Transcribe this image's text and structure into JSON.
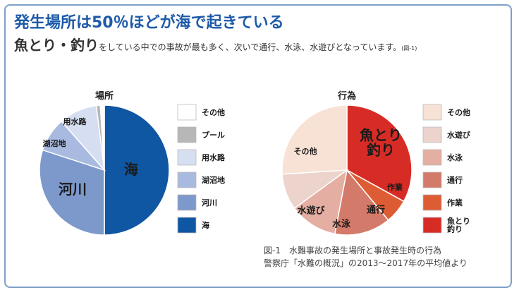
{
  "title": "発生場所は50％ほどが海で起きている",
  "subtitle": {
    "lead": "魚とり・釣り",
    "rest": "をしている中での事故が最も多く、次いで通行、水泳、水遊びとなっています。",
    "ref": "(図-1)"
  },
  "caption": {
    "line1": "図-1　水難事故の発生場所と事故発生時の行為",
    "line2": "警察庁「水難の概況」の2013〜2017年の平均値より"
  },
  "chart_data": [
    {
      "type": "pie",
      "title": "場所",
      "slices": [
        {
          "label": "海",
          "value": 50.0,
          "color": "#0f56a3",
          "label_color": "#1a1a1a",
          "label_size": 20
        },
        {
          "label": "河川",
          "value": 30.0,
          "color": "#7d98cb",
          "label_color": "#1a1a1a",
          "label_size": 20
        },
        {
          "label": "湖沼地",
          "value": 8.5,
          "color": "#a8badf",
          "label_color": "#1a1a1a",
          "label_size": 11
        },
        {
          "label": "用水路",
          "value": 9.5,
          "color": "#d6def1",
          "label_color": "#1a1a1a",
          "label_size": 11
        },
        {
          "label": "プール",
          "value": 1.0,
          "color": "#b7b7b7",
          "label_color": "",
          "label_size": 0
        },
        {
          "label": "その他",
          "value": 1.0,
          "color": "#ffffff",
          "label_color": "",
          "label_size": 0
        }
      ],
      "legend": [
        {
          "label": "その他",
          "color": "#ffffff"
        },
        {
          "label": "プール",
          "color": "#b7b7b7"
        },
        {
          "label": "用水路",
          "color": "#d6def1"
        },
        {
          "label": "湖沼地",
          "color": "#a8badf"
        },
        {
          "label": "河川",
          "color": "#7d98cb"
        },
        {
          "label": "海",
          "color": "#0f56a3"
        }
      ]
    },
    {
      "type": "pie",
      "title": "行為",
      "slices": [
        {
          "label": "魚とり\n釣り",
          "value": 33.0,
          "color": "#d72c26",
          "label_color": "#1a1a1a",
          "label_size": 20
        },
        {
          "label": "作業",
          "value": 6.0,
          "color": "#de5c34",
          "label_color": "#1a1a1a",
          "label_size": 11
        },
        {
          "label": "通行",
          "value": 14.0,
          "color": "#d47a6a",
          "label_color": "#1a1a1a",
          "label_size": 13
        },
        {
          "label": "水泳",
          "value": 12.0,
          "color": "#e4afa2",
          "label_color": "#1a1a1a",
          "label_size": 13
        },
        {
          "label": "水遊び",
          "value": 9.0,
          "color": "#ecd3cc",
          "label_color": "#1a1a1a",
          "label_size": 13
        },
        {
          "label": "その他",
          "value": 26.0,
          "color": "#f7e2d5",
          "label_color": "#1a1a1a",
          "label_size": 11
        }
      ],
      "legend": [
        {
          "label": "その他",
          "color": "#f7e2d5"
        },
        {
          "label": "水遊び",
          "color": "#ecd3cc"
        },
        {
          "label": "水泳",
          "color": "#e4afa2"
        },
        {
          "label": "通行",
          "color": "#d47a6a"
        },
        {
          "label": "作業",
          "color": "#de5c34"
        },
        {
          "label": "魚とり\n釣り",
          "color": "#d72c26"
        }
      ]
    }
  ]
}
